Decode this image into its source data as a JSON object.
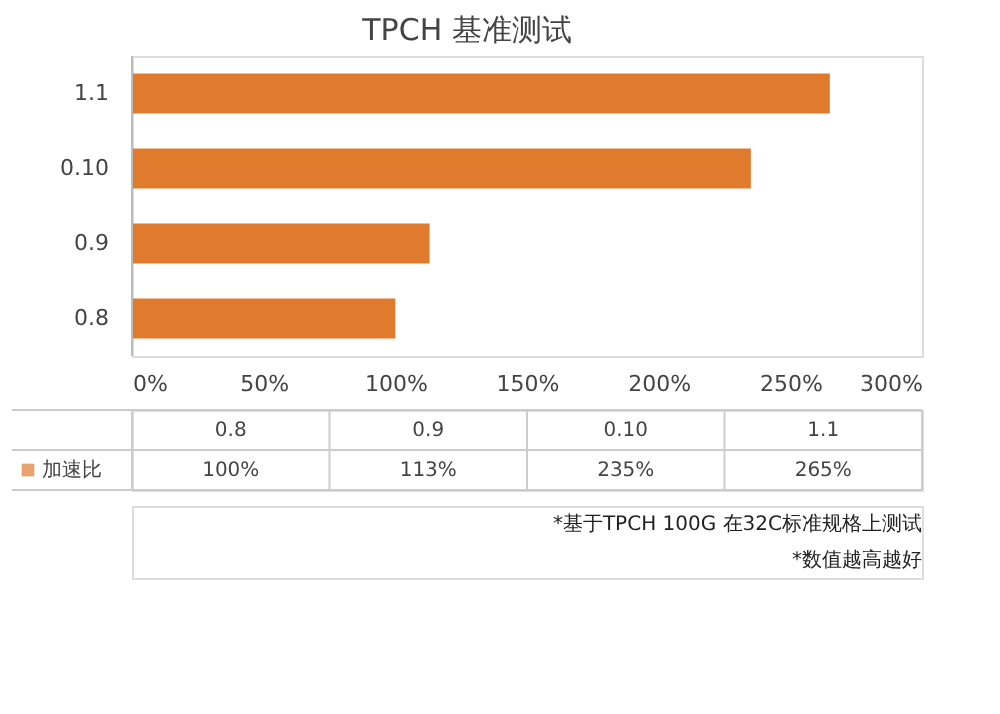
{
  "chart_data": {
    "type": "bar",
    "orientation": "horizontal",
    "title": "TPCH 基准测试",
    "categories": [
      "1.1",
      "0.10",
      "0.9",
      "0.8"
    ],
    "series": [
      {
        "name": "加速比",
        "color": "#e07b2e",
        "values": [
          265,
          235,
          113,
          100
        ]
      }
    ],
    "value_labels": [
      "265%",
      "235%",
      "113%",
      "100%"
    ],
    "xlim": [
      0,
      300
    ],
    "xticks": [
      {
        "value": 0,
        "label": "0%"
      },
      {
        "value": 50,
        "label": "50%"
      },
      {
        "value": 100,
        "label": "100%"
      },
      {
        "value": 150,
        "label": "150%"
      },
      {
        "value": 200,
        "label": "200%"
      },
      {
        "value": 250,
        "label": "250%"
      },
      {
        "value": 300,
        "label": "300%"
      }
    ],
    "grid": false,
    "legend": "bottom",
    "annotations": [
      "*基于TPCH 100G 在32C标准规格上测试",
      "*数值越高越好"
    ]
  }
}
